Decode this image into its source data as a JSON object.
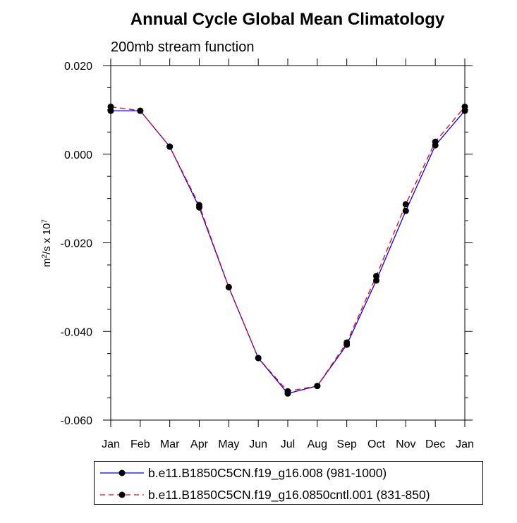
{
  "chart_data": {
    "type": "line",
    "title": "Annual Cycle Global Mean Climatology",
    "subtitle": "200mb stream function",
    "ylabel_base": "m",
    "ylabel_sup1": "2",
    "ylabel_mid": "/s x 10",
    "ylabel_sup2": "7",
    "categories": [
      "Jan",
      "Feb",
      "Mar",
      "Apr",
      "May",
      "Jun",
      "Jul",
      "Aug",
      "Sep",
      "Oct",
      "Nov",
      "Dec",
      "Jan"
    ],
    "ylim": [
      -0.06,
      0.02
    ],
    "yticks": [
      "0.020",
      "0.000",
      "-0.020",
      "-0.040",
      "-0.060"
    ],
    "ytick_values": [
      0.02,
      0.0,
      -0.02,
      -0.04,
      -0.06
    ],
    "series": [
      {
        "name": "b.e11.B1850C5CN.f19_g16.008 (981-1000)",
        "color": "#0000ff",
        "style": "solid",
        "values": [
          0.0098,
          0.0098,
          0.0017,
          -0.012,
          -0.03,
          -0.046,
          -0.054,
          -0.0523,
          -0.043,
          -0.0285,
          -0.0128,
          0.002,
          0.0098
        ]
      },
      {
        "name": "b.e11.B1850C5CN.f19_g16.0850cntl.001 (831-850)",
        "color": "#ff0000",
        "style": "dashed",
        "values": [
          0.0107,
          0.0098,
          0.0017,
          -0.0115,
          -0.03,
          -0.046,
          -0.0535,
          -0.0523,
          -0.0425,
          -0.0275,
          -0.0113,
          0.0028,
          0.0107
        ]
      }
    ],
    "grid": false
  }
}
